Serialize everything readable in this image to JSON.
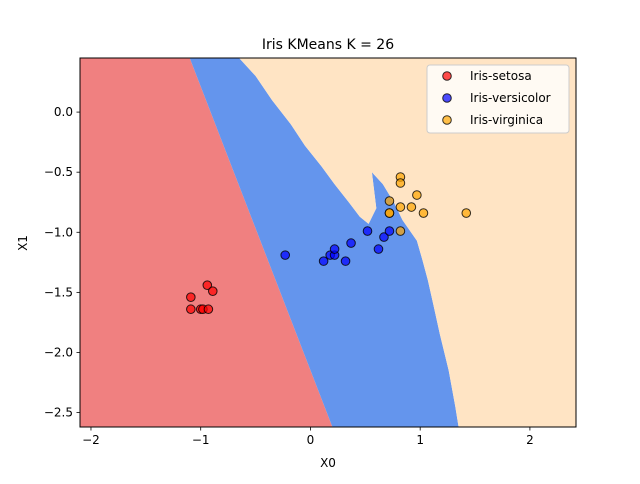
{
  "chart_data": {
    "type": "scatter",
    "title": "Iris KMeans K = 26",
    "xlabel": "X0",
    "ylabel": "X1",
    "xlim": [
      -2.1,
      2.42
    ],
    "ylim": [
      -2.62,
      0.45
    ],
    "x_ticks": [
      -2,
      -1,
      0,
      1,
      2
    ],
    "x_tick_labels": [
      "−2",
      "−1",
      "0",
      "1",
      "2"
    ],
    "y_ticks": [
      0.0,
      -0.5,
      -1.0,
      -1.5,
      -2.0,
      -2.5
    ],
    "y_tick_labels": [
      "0.0",
      "−0.5",
      "−1.0",
      "−1.5",
      "−2.0",
      "−2.5"
    ],
    "legend_position": "top-right",
    "regions": [
      {
        "class": "Iris-setosa",
        "color": "#F08080",
        "boundary": [
          [
            -2.1,
            0.45
          ],
          [
            -1.1,
            0.45
          ],
          [
            0.2,
            -2.62
          ],
          [
            -2.1,
            -2.62
          ]
        ]
      },
      {
        "class": "Iris-versicolor",
        "color": "#6495ED",
        "boundary": [
          [
            -1.1,
            0.45
          ],
          [
            -0.65,
            0.45
          ],
          [
            -0.5,
            0.3
          ],
          [
            -0.35,
            0.1
          ],
          [
            -0.18,
            -0.1
          ],
          [
            -0.05,
            -0.28
          ],
          [
            0.1,
            -0.45
          ],
          [
            0.22,
            -0.6
          ],
          [
            0.35,
            -0.75
          ],
          [
            0.45,
            -0.87
          ],
          [
            0.53,
            -0.93
          ],
          [
            0.6,
            -0.8
          ],
          [
            0.56,
            -0.5
          ],
          [
            0.66,
            -0.6
          ],
          [
            0.76,
            -0.75
          ],
          [
            0.84,
            -0.9
          ],
          [
            0.97,
            -1.07
          ],
          [
            1.02,
            -1.23
          ],
          [
            1.07,
            -1.4
          ],
          [
            1.12,
            -1.6
          ],
          [
            1.18,
            -1.85
          ],
          [
            1.26,
            -2.15
          ],
          [
            1.32,
            -2.45
          ],
          [
            1.35,
            -2.62
          ],
          [
            0.2,
            -2.62
          ]
        ]
      },
      {
        "class": "Iris-virginica",
        "color": "#FFE4C4",
        "boundary": [
          [
            -0.65,
            0.45
          ],
          [
            2.42,
            0.45
          ],
          [
            2.42,
            -2.62
          ],
          [
            1.35,
            -2.62
          ],
          [
            1.32,
            -2.45
          ],
          [
            1.26,
            -2.15
          ],
          [
            1.18,
            -1.85
          ],
          [
            1.12,
            -1.6
          ],
          [
            1.07,
            -1.4
          ],
          [
            1.02,
            -1.23
          ],
          [
            0.97,
            -1.07
          ],
          [
            0.84,
            -0.9
          ],
          [
            0.76,
            -0.75
          ],
          [
            0.66,
            -0.6
          ],
          [
            0.56,
            -0.5
          ],
          [
            0.6,
            -0.8
          ],
          [
            0.53,
            -0.93
          ],
          [
            0.45,
            -0.87
          ],
          [
            0.35,
            -0.75
          ],
          [
            0.22,
            -0.6
          ],
          [
            0.1,
            -0.45
          ],
          [
            -0.05,
            -0.28
          ],
          [
            -0.18,
            -0.1
          ],
          [
            -0.35,
            0.1
          ],
          [
            -0.5,
            0.3
          ]
        ]
      }
    ],
    "series": [
      {
        "name": "Iris-setosa",
        "color": "#FF0000",
        "points": [
          [
            -1.09,
            -1.54
          ],
          [
            -1.09,
            -1.64
          ],
          [
            -1.0,
            -1.64
          ],
          [
            -0.98,
            -1.64
          ],
          [
            -0.93,
            -1.64
          ],
          [
            -0.94,
            -1.44
          ],
          [
            -0.89,
            -1.49
          ]
        ]
      },
      {
        "name": "Iris-versicolor",
        "color": "#0000FF",
        "points": [
          [
            -0.23,
            -1.19
          ],
          [
            0.12,
            -1.24
          ],
          [
            0.18,
            -1.19
          ],
          [
            0.22,
            -1.19
          ],
          [
            0.22,
            -1.14
          ],
          [
            0.32,
            -1.24
          ],
          [
            0.37,
            -1.09
          ],
          [
            0.52,
            -0.99
          ],
          [
            0.62,
            -1.14
          ],
          [
            0.67,
            -1.04
          ],
          [
            0.72,
            -0.99
          ]
        ]
      },
      {
        "name": "Iris-virginica",
        "color": "#FFA500",
        "points": [
          [
            0.72,
            -0.74
          ],
          [
            0.72,
            -0.84
          ],
          [
            0.72,
            -0.84
          ],
          [
            0.82,
            -0.54
          ],
          [
            0.82,
            -0.59
          ],
          [
            0.82,
            -0.79
          ],
          [
            0.82,
            -0.99
          ],
          [
            0.92,
            -0.79
          ],
          [
            0.97,
            -0.69
          ],
          [
            1.03,
            -0.84
          ],
          [
            1.42,
            -0.84
          ]
        ]
      }
    ]
  }
}
